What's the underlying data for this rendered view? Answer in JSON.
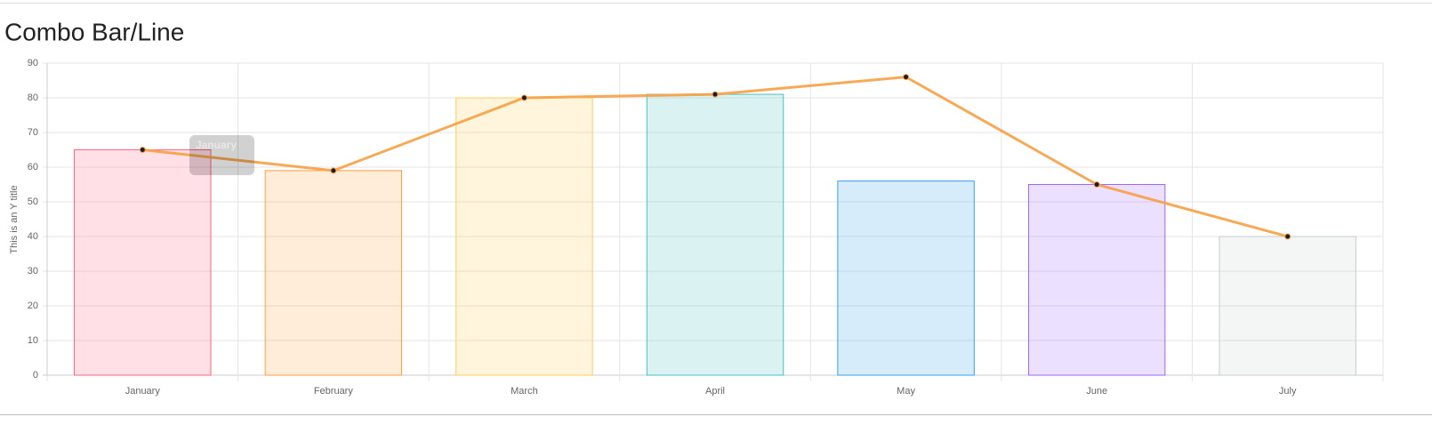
{
  "chart_data": {
    "type": "combo",
    "title": "Combo Bar/Line",
    "y_title": "This is an Y title",
    "categories": [
      "January",
      "February",
      "March",
      "April",
      "May",
      "June",
      "July"
    ],
    "ylim": [
      0,
      90
    ],
    "yticks": [
      0,
      10,
      20,
      30,
      40,
      50,
      60,
      70,
      80,
      90
    ],
    "grid": true,
    "series": [
      {
        "type": "bar",
        "values": [
          65,
          59,
          80,
          81,
          56,
          55,
          40
        ],
        "colors": [
          "#ff6384",
          "#ff9f40",
          "#ffcd56",
          "#4bc0c0",
          "#36a2eb",
          "#9966ff",
          "#c9cbcf"
        ]
      },
      {
        "type": "line",
        "color": "#f7a043",
        "values": [
          65,
          59,
          80,
          81,
          86,
          55,
          40
        ]
      }
    ],
    "tooltip": {
      "title": "January"
    }
  }
}
